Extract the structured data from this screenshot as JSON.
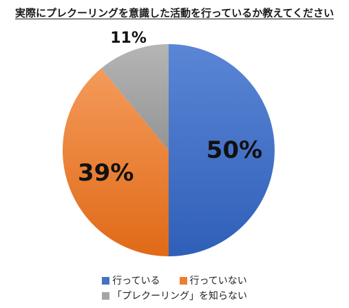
{
  "chart_data": {
    "type": "pie",
    "title": "実際にプレクーリングを意識した活動を行っているか教えてください",
    "categories": [
      "行っている",
      "行っていない",
      "「プレクーリング」を知らない"
    ],
    "values": [
      50,
      39,
      11
    ],
    "value_labels": [
      "50%",
      "39%",
      "11%"
    ],
    "colors": [
      "#4472C4",
      "#ED7D31",
      "#A5A5A5"
    ],
    "legend_placement": "bottom"
  }
}
